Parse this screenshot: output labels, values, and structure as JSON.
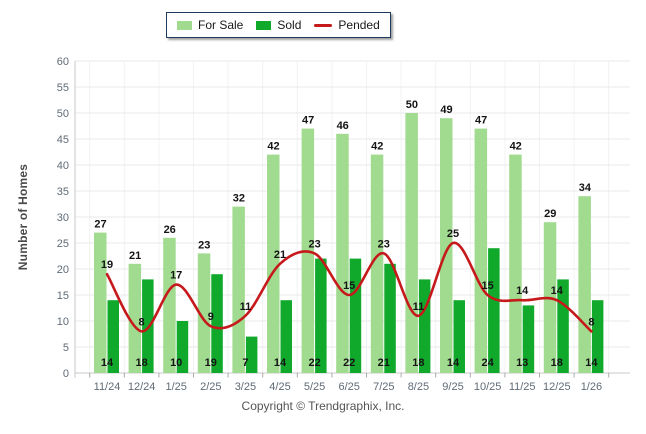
{
  "footer": {
    "copyright": "Copyright © Trendgraphix, Inc."
  },
  "chart_data": {
    "type": "bar+line",
    "title": "",
    "xlabel": "",
    "ylabel": "Number of Homes",
    "ylim": [
      0,
      60
    ],
    "ytick_step": 5,
    "grid": true,
    "legend_position": "top",
    "categories": [
      "11/24",
      "12/24",
      "1/25",
      "2/25",
      "3/25",
      "4/25",
      "5/25",
      "6/25",
      "7/25",
      "8/25",
      "9/25",
      "10/25",
      "11/25",
      "12/25",
      "1/26"
    ],
    "series": [
      {
        "name": "For Sale",
        "type": "bar",
        "color": "#a1db8f",
        "values": [
          27,
          21,
          26,
          23,
          32,
          42,
          47,
          46,
          42,
          50,
          49,
          47,
          42,
          29,
          34
        ]
      },
      {
        "name": "Sold",
        "type": "bar",
        "color": "#10a92c",
        "values": [
          14,
          18,
          10,
          19,
          7,
          14,
          22,
          22,
          21,
          18,
          14,
          24,
          13,
          18,
          14
        ]
      },
      {
        "name": "Pended",
        "type": "line",
        "color": "#c6191c",
        "values": [
          19,
          8,
          17,
          9,
          11,
          21,
          23,
          15,
          23,
          11,
          25,
          15,
          14,
          14,
          8
        ]
      }
    ],
    "colors": {
      "grid_line": "#e8e8e8",
      "grid_line_vertical": "#f2f2f2",
      "axis_line": "#c8c8c8",
      "tick_mark": "#ababab",
      "tick_text": "#5f6b76",
      "value_text": "#141414",
      "legend_border": "#1e3b5e"
    }
  }
}
